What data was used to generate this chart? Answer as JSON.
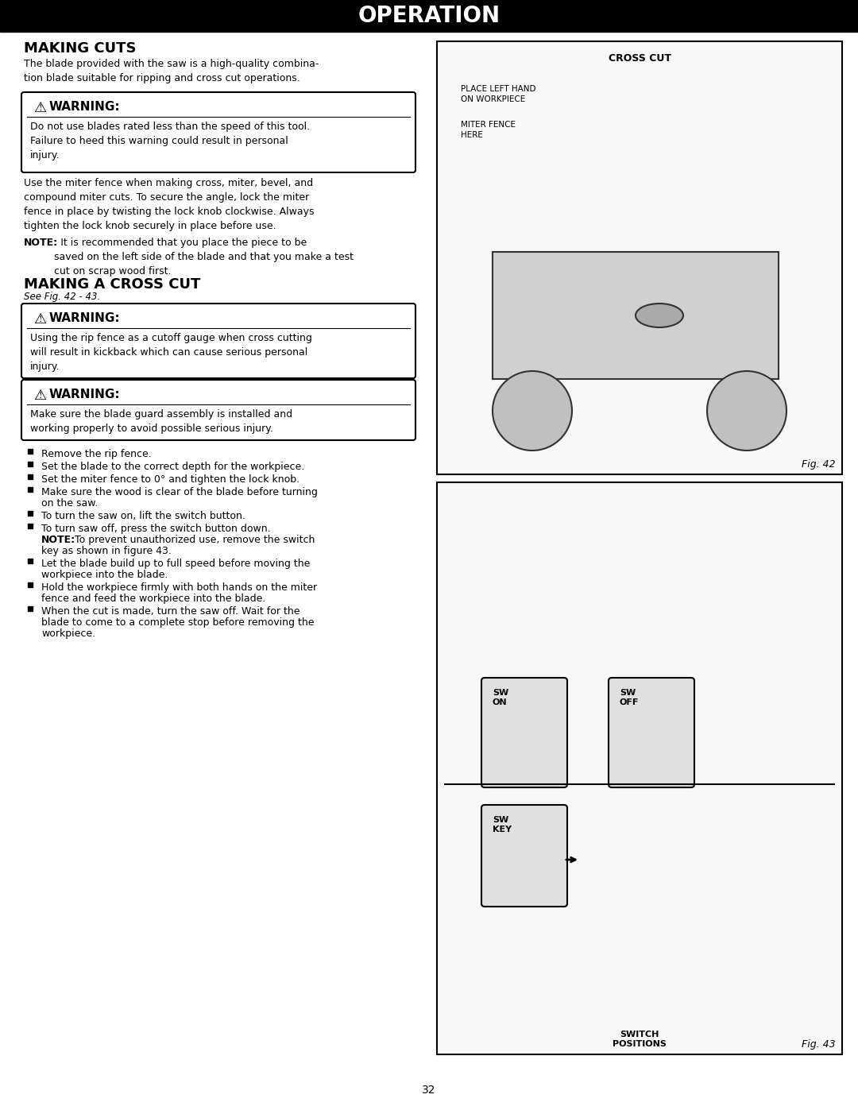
{
  "page_title": "OPERATION",
  "page_number": "32",
  "left_col": {
    "section1_title": "MAKING CUTS",
    "section1_body": "The blade provided with the saw is a high-quality combina-\ntion blade suitable for ripping and cross cut operations.",
    "warning1_title": "⚠  WARNING:",
    "warning1_body": "Do not use blades rated less than the speed of this tool.\nFailure to heed this warning could result in personal\ninjury.",
    "section1_body2": "Use the miter fence when making cross, miter, bevel, and\ncompound miter cuts. To secure the angle, lock the miter\nfence in place by twisting the lock knob clockwise. Always\ntighten the lock knob securely in place before use.",
    "section1_note": "NOTE: It is recommended that you place the piece to be\nsaved on the left side of the blade and that you make a test\ncut on scrap wood first.",
    "section2_title": "MAKING A CROSS CUT",
    "section2_subtitle": "See Fig. 42 - 43.",
    "warning2_title": "⚠  WARNING:",
    "warning2_body": "Using the rip fence as a cutoff gauge when cross cutting\nwill result in kickback which can cause serious personal\ninjury.",
    "warning3_title": "⚠  WARNING:",
    "warning3_body": "Make sure the blade guard assembly is installed and\nworking properly to avoid possible serious injury.",
    "bullets": [
      "Remove the rip fence.",
      "Set the blade to the correct depth for the workpiece.",
      "Set the miter fence to 0° and tighten the lock knob.",
      "Make sure the wood is clear of the blade before turning\non the saw.",
      "To turn the saw on, lift the switch button.",
      "To turn saw off, press the switch button down.\nNOTE: To prevent unauthorized use, remove the switch\nkey as shown in figure 43.",
      "Let the blade build up to full speed before moving the\nworkpiece into the blade.",
      "Hold the workpiece firmly with both hands on the miter\nfence and feed the workpiece into the blade.",
      "When the cut is made, turn the saw off. Wait for the\nblade to come to a complete stop before removing the\nworkpiece."
    ]
  },
  "right_col": {
    "fig42_label": "Fig. 42",
    "fig42_annotations": [
      "CROSS CUT",
      "PLACE LEFT HAND\nON WORKPIECE",
      "MITER FENCE\nHERE"
    ],
    "fig43_label": "Fig. 43",
    "fig43_annotations": [
      "SW\nON",
      "SW\nOFF",
      "SW\nKEY",
      "SWITCH\nPOSITIONS"
    ]
  },
  "colors": {
    "background": "#ffffff",
    "header_bg": "#000000",
    "header_text": "#ffffff",
    "body_text": "#000000",
    "warning_border": "#000000",
    "warning_bg": "#ffffff",
    "fig_border": "#000000",
    "fig_bg": "#f5f5f5"
  }
}
